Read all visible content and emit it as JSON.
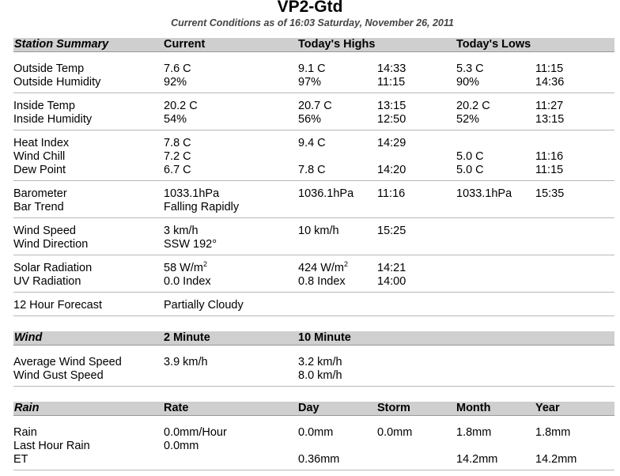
{
  "page": {
    "title": "VP2-Gtd",
    "subtitle": "Current Conditions as of 16:03 Saturday, November 26, 2011"
  },
  "station": {
    "headers": [
      "Station Summary",
      "Current",
      "Today's Highs",
      "Today's Lows"
    ],
    "groups": [
      [
        {
          "label": "Outside Temp",
          "current": "7.6 C",
          "high": "9.1 C",
          "high_time": "14:33",
          "low": "5.3 C",
          "low_time": "11:15"
        },
        {
          "label": "Outside Humidity",
          "current": "92%",
          "high": "97%",
          "high_time": "11:15",
          "low": "90%",
          "low_time": "14:36"
        }
      ],
      [
        {
          "label": "Inside Temp",
          "current": "20.2 C",
          "high": "20.7 C",
          "high_time": "13:15",
          "low": "20.2 C",
          "low_time": "11:27"
        },
        {
          "label": "Inside Humidity",
          "current": "54%",
          "high": "56%",
          "high_time": "12:50",
          "low": "52%",
          "low_time": "13:15"
        }
      ],
      [
        {
          "label": "Heat Index",
          "current": "7.8 C",
          "high": "9.4 C",
          "high_time": "14:29",
          "low": "",
          "low_time": ""
        },
        {
          "label": "Wind Chill",
          "current": "7.2 C",
          "high": "",
          "high_time": "",
          "low": "5.0 C",
          "low_time": "11:16"
        },
        {
          "label": "Dew Point",
          "current": "6.7 C",
          "high": "7.8 C",
          "high_time": "14:20",
          "low": "5.0 C",
          "low_time": "11:15"
        }
      ],
      [
        {
          "label": "Barometer",
          "current": "1033.1hPa",
          "high": "1036.1hPa",
          "high_time": "11:16",
          "low": "1033.1hPa",
          "low_time": "15:35"
        },
        {
          "label": "Bar Trend",
          "current": "Falling Rapidly",
          "high": "",
          "high_time": "",
          "low": "",
          "low_time": ""
        }
      ],
      [
        {
          "label": "Wind Speed",
          "current": "3 km/h",
          "high": "10 km/h",
          "high_time": "15:25",
          "low": "",
          "low_time": ""
        },
        {
          "label": "Wind Direction",
          "current": "SSW 192°",
          "high": "",
          "high_time": "",
          "low": "",
          "low_time": ""
        }
      ],
      [
        {
          "label": "Solar Radiation",
          "current": "58 W/m",
          "current_sup": "2",
          "high": "424 W/m",
          "high_sup": "2",
          "high_time": "14:21",
          "low": "",
          "low_time": ""
        },
        {
          "label": "UV Radiation",
          "current": "0.0 Index",
          "high": "0.8 Index",
          "high_time": "14:00",
          "low": "",
          "low_time": ""
        }
      ],
      [
        {
          "label": "12 Hour Forecast",
          "current": "Partially Cloudy",
          "high": "",
          "high_time": "",
          "low": "",
          "low_time": ""
        }
      ]
    ]
  },
  "wind": {
    "headers": [
      "Wind",
      "2 Minute",
      "10 Minute"
    ],
    "rows": [
      {
        "label": "Average Wind Speed",
        "two_min": "3.9 km/h",
        "ten_min": "3.2 km/h"
      },
      {
        "label": "Wind Gust Speed",
        "two_min": "",
        "ten_min": "8.0 km/h"
      }
    ]
  },
  "rain": {
    "headers": [
      "Rain",
      "Rate",
      "Day",
      "Storm",
      "Month",
      "Year"
    ],
    "rows": [
      {
        "label": "Rain",
        "rate": "0.0mm/Hour",
        "day": "0.0mm",
        "storm": "0.0mm",
        "month": "1.8mm",
        "year": "1.8mm"
      },
      {
        "label": "Last Hour Rain",
        "rate": "0.0mm",
        "day": "",
        "storm": "",
        "month": "",
        "year": ""
      },
      {
        "label": "ET",
        "rate": "",
        "day": "0.36mm",
        "storm": "",
        "month": "14.2mm",
        "year": "14.2mm"
      }
    ]
  }
}
